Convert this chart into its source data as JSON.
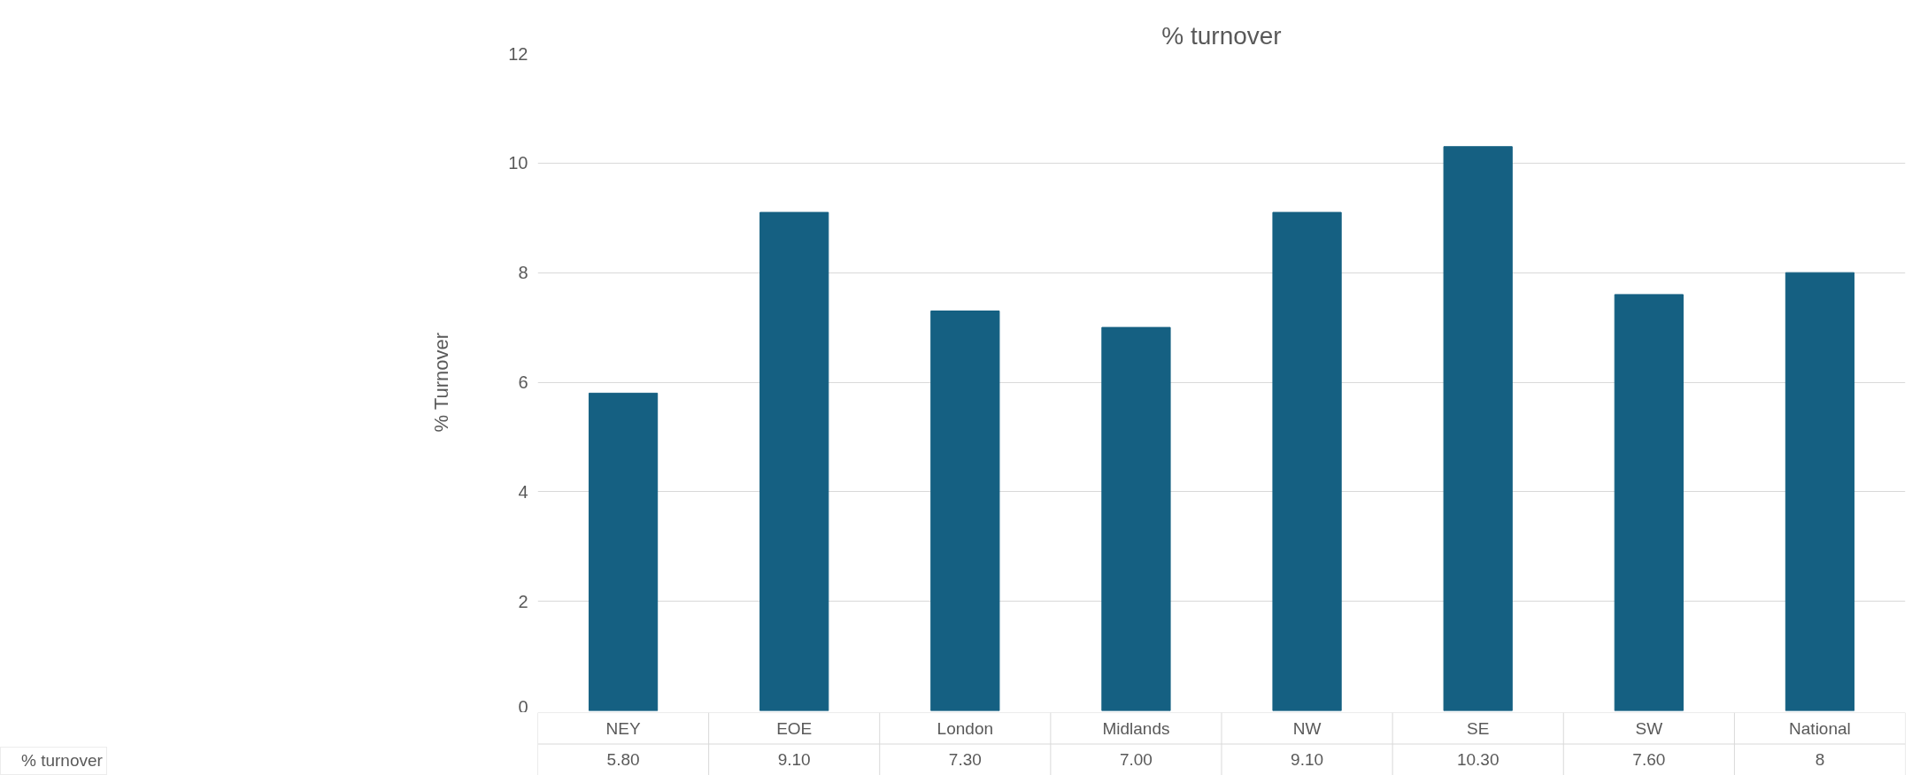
{
  "chart_data": {
    "type": "bar",
    "title": "% turnover",
    "ylabel": "% Turnover",
    "categories": [
      "NEY",
      "EOE",
      "London",
      "Midlands",
      "NW",
      "SE",
      "SW",
      "National"
    ],
    "series": [
      {
        "name": "% turnover",
        "color": "#156082",
        "values": [
          5.8,
          9.1,
          7.3,
          7.0,
          9.1,
          10.3,
          7.6,
          8
        ],
        "value_labels": [
          "5.80",
          "9.10",
          "7.30",
          "7.00",
          "9.10",
          "10.30",
          "7.60",
          "8"
        ]
      }
    ],
    "ylim": [
      0,
      12
    ],
    "yticks": [
      0,
      2,
      4,
      6,
      8,
      10,
      12
    ],
    "grid": "y",
    "legend": "bottom left"
  }
}
